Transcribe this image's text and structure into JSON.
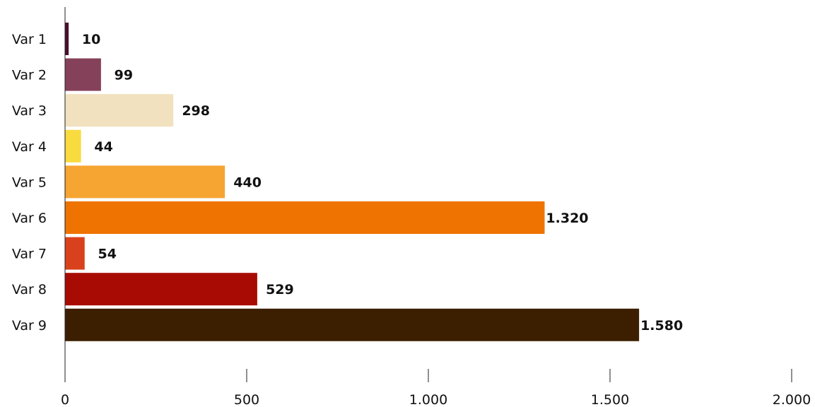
{
  "chart_data": {
    "type": "bar",
    "orientation": "horizontal",
    "categories": [
      "Var 1",
      "Var 2",
      "Var 3",
      "Var 4",
      "Var 5",
      "Var 6",
      "Var 7",
      "Var 8",
      "Var 9"
    ],
    "values": [
      10,
      99,
      298,
      44,
      440,
      1320,
      54,
      529,
      1580
    ],
    "value_labels": [
      "10",
      "99",
      "298",
      "44",
      "440",
      "1.320",
      "54",
      "529",
      "1.580"
    ],
    "colors": [
      "#4a0f2e",
      "#86415a",
      "#f1e1be",
      "#f8db3f",
      "#f6a533",
      "#ef7300",
      "#d9411c",
      "#a80b03",
      "#3c1f00"
    ],
    "xlim": [
      0,
      2000
    ],
    "x_ticks": [
      0,
      500,
      1000,
      1500,
      2000
    ],
    "x_tick_labels": [
      "0",
      "500",
      "1.000",
      "1.500",
      "2.000"
    ],
    "title": "",
    "xlabel": "",
    "ylabel": "",
    "grid": false,
    "legend": "none"
  }
}
